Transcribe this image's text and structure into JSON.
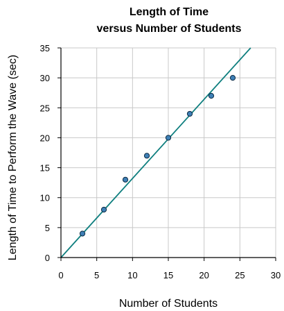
{
  "chart_data": {
    "type": "scatter",
    "title_lines": [
      "Length of Time",
      "versus Number of Students"
    ],
    "xlabel": "Number of Students",
    "ylabel": "Length of Time to Perform the Wave (sec)",
    "xlim": [
      0,
      30
    ],
    "ylim": [
      0,
      35
    ],
    "xticks": [
      0,
      5,
      10,
      15,
      20,
      25,
      30
    ],
    "yticks": [
      0,
      5,
      10,
      15,
      20,
      25,
      30,
      35
    ],
    "grid": true,
    "series": [
      {
        "points": [
          {
            "x": 3,
            "y": 4
          },
          {
            "x": 6,
            "y": 8
          },
          {
            "x": 9,
            "y": 13
          },
          {
            "x": 12,
            "y": 17
          },
          {
            "x": 15,
            "y": 20
          },
          {
            "x": 18,
            "y": 24
          },
          {
            "x": 21,
            "y": 27
          },
          {
            "x": 24,
            "y": 30
          }
        ]
      }
    ],
    "trend_line": {
      "from": {
        "x": 0,
        "y": 0
      },
      "to": {
        "x": 26.5,
        "y": 35
      }
    },
    "colors": {
      "point_fill": "#3f80b6",
      "point_stroke": "#0b2a44",
      "trend_line": "#0f7f7f",
      "grid": "#c8c8c8",
      "axes": "#000000"
    }
  }
}
